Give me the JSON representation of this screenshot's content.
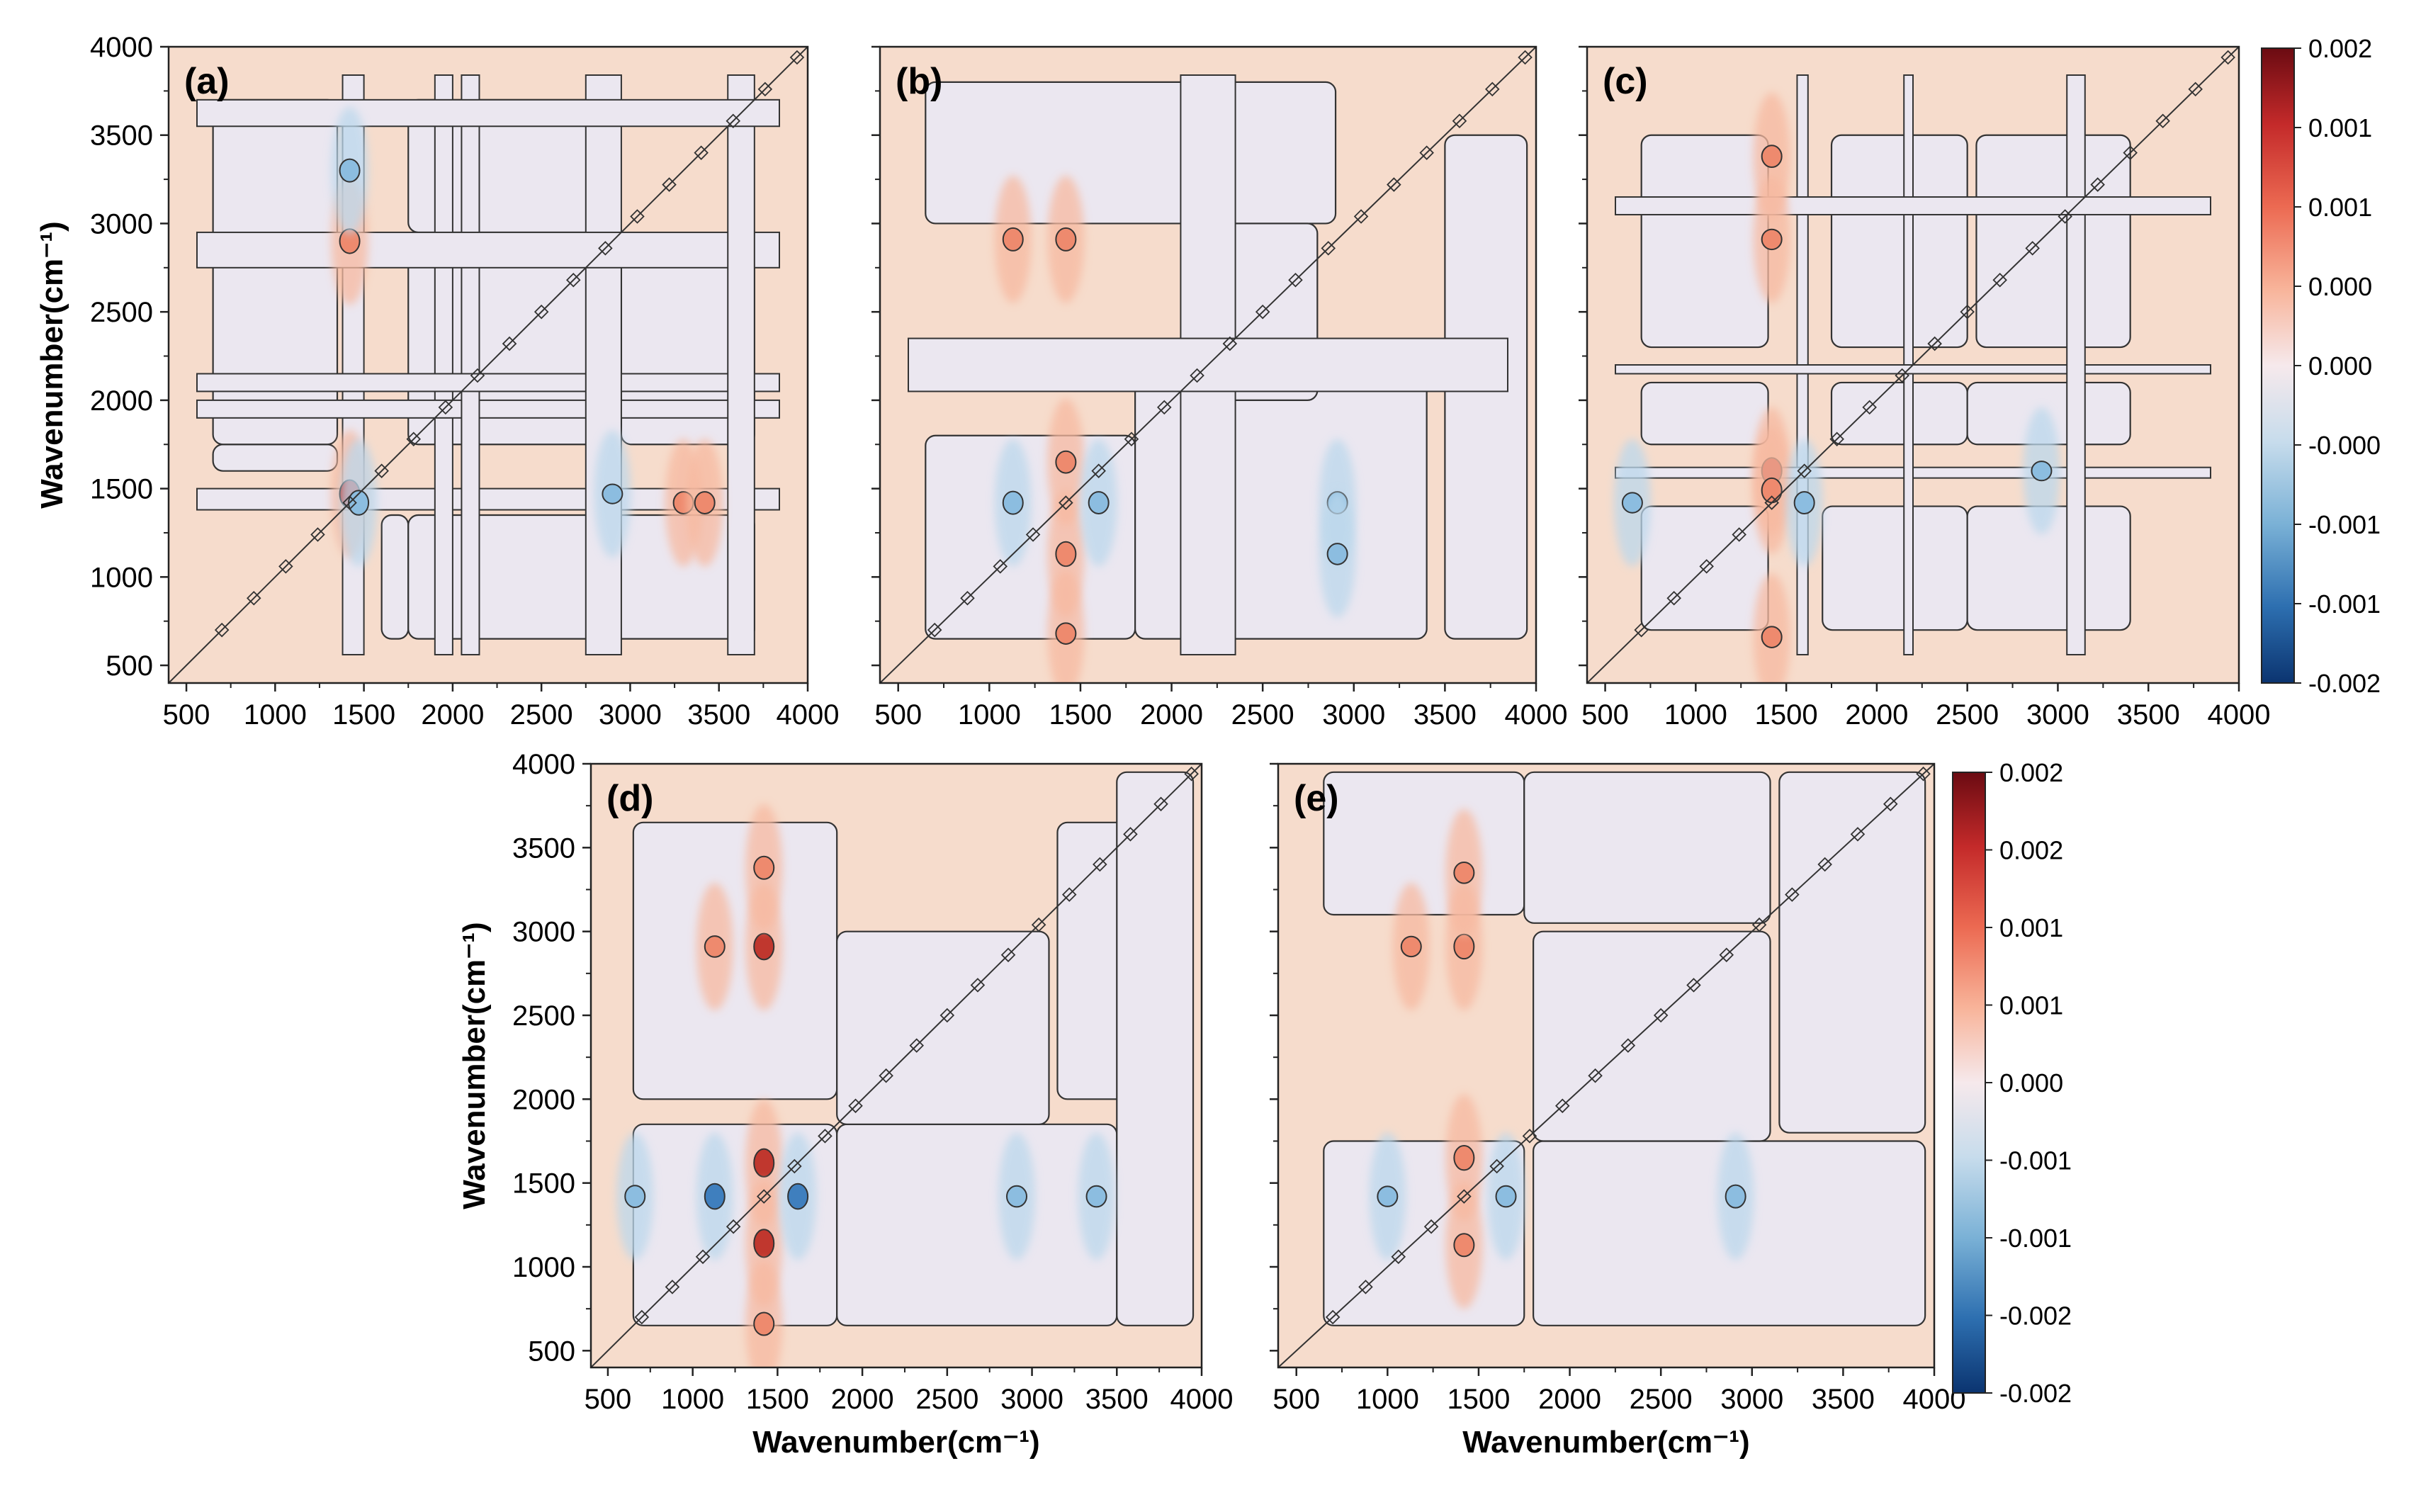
{
  "chart_data": {
    "type": "heatmap",
    "description_kind": "2D-COS synchronous contour maps",
    "colormap": {
      "low": "#0b3b80",
      "mid_low": "#d9e8f3",
      "mid": "#ebe7f0",
      "mid_high": "#f6dccc",
      "high": "#7a0a12"
    },
    "regions": {
      "positive_background": "#f6dccc",
      "negative_background": "#ebe7f0",
      "contour_line": "#333333"
    },
    "panels": [
      {
        "label": "(a)",
        "xlabel": "",
        "ylabel": "Wavenumber(cm⁻¹)",
        "xlim": [
          400,
          4000
        ],
        "ylim": [
          400,
          4000
        ],
        "xticks": [
          "500",
          "1000",
          "1500",
          "2000",
          "2500",
          "3000",
          "3500",
          "4000"
        ],
        "yticks": [
          "500",
          "1000",
          "1500",
          "2000",
          "2500",
          "3000",
          "3500",
          "4000"
        ],
        "negative_bands": [
          [
            1380,
            1500
          ],
          [
            1900,
            2000
          ],
          [
            2050,
            2150
          ],
          [
            2750,
            2950
          ],
          [
            3550,
            3700
          ]
        ],
        "negative_blocks": [
          [
            [
              650,
              1350
            ],
            [
              1600,
              1750
            ]
          ],
          [
            [
              1600,
              1750
            ],
            [
              650,
              1350
            ]
          ],
          [
            [
              1750,
              2900
            ],
            [
              1750,
              2900
            ]
          ],
          [
            [
              650,
              1350
            ],
            [
              1750,
              3700
            ]
          ],
          [
            [
              1750,
              3700
            ],
            [
              650,
              1350
            ]
          ],
          [
            [
              2950,
              3700
            ],
            [
              1750,
              2900
            ]
          ],
          [
            [
              1750,
              2900
            ],
            [
              2950,
              3700
            ]
          ]
        ],
        "peaks": [
          {
            "x": 1420,
            "y": 1470,
            "sign": "+",
            "intensity": 0.0016
          },
          {
            "x": 1470,
            "y": 1420,
            "sign": "-",
            "intensity": 0.0012
          },
          {
            "x": 1420,
            "y": 2900,
            "sign": "+",
            "intensity": 0.0012
          },
          {
            "x": 1420,
            "y": 3300,
            "sign": "-",
            "intensity": 0.001
          },
          {
            "x": 3300,
            "y": 1420,
            "sign": "+",
            "intensity": 0.0009
          },
          {
            "x": 3420,
            "y": 1420,
            "sign": "+",
            "intensity": 0.0009
          },
          {
            "x": 2900,
            "y": 1470,
            "sign": "-",
            "intensity": 0.0006
          }
        ]
      },
      {
        "label": "(b)",
        "xlabel": "",
        "ylabel": "",
        "xlim": [
          400,
          4000
        ],
        "ylim": [
          400,
          4000
        ],
        "xticks": [
          "500",
          "1000",
          "1500",
          "2000",
          "2500",
          "3000",
          "3500",
          "4000"
        ],
        "yticks": [],
        "negative_bands": [
          [
            2050,
            2350
          ]
        ],
        "negative_blocks": [
          [
            [
              650,
              1800
            ],
            [
              650,
              1800
            ]
          ],
          [
            [
              1800,
              3400
            ],
            [
              650,
              2200
            ]
          ],
          [
            [
              650,
              2900
            ],
            [
              3000,
              3800
            ]
          ],
          [
            [
              3500,
              3950
            ],
            [
              650,
              3500
            ]
          ],
          [
            [
              2200,
              2800
            ],
            [
              2000,
              3000
            ]
          ]
        ],
        "peaks": [
          {
            "x": 1130,
            "y": 2910,
            "sign": "+",
            "intensity": 0.001
          },
          {
            "x": 1420,
            "y": 2910,
            "sign": "+",
            "intensity": 0.001
          },
          {
            "x": 1420,
            "y": 1130,
            "sign": "+",
            "intensity": 0.0012
          },
          {
            "x": 1420,
            "y": 1650,
            "sign": "+",
            "intensity": 0.0009
          },
          {
            "x": 1420,
            "y": 680,
            "sign": "+",
            "intensity": 0.0008
          },
          {
            "x": 1130,
            "y": 1420,
            "sign": "-",
            "intensity": 0.001
          },
          {
            "x": 1600,
            "y": 1420,
            "sign": "-",
            "intensity": 0.0009
          },
          {
            "x": 2910,
            "y": 1420,
            "sign": "-",
            "intensity": 0.0009
          },
          {
            "x": 2910,
            "y": 1130,
            "sign": "-",
            "intensity": 0.0008
          }
        ]
      },
      {
        "label": "(c)",
        "xlabel": "",
        "ylabel": "",
        "xlim": [
          400,
          4000
        ],
        "ylim": [
          400,
          4000
        ],
        "xticks": [
          "500",
          "1000",
          "1500",
          "2000",
          "2500",
          "3000",
          "3500",
          "4000"
        ],
        "yticks": [],
        "negative_bands": [
          [
            1560,
            1620
          ],
          [
            2150,
            2200
          ],
          [
            3050,
            3150
          ]
        ],
        "negative_blocks": [
          [
            [
              700,
              1400
            ],
            [
              700,
              1400
            ]
          ],
          [
            [
              1700,
              2500
            ],
            [
              700,
              1400
            ]
          ],
          [
            [
              2500,
              3400
            ],
            [
              700,
              1400
            ]
          ],
          [
            [
              700,
              1400
            ],
            [
              1750,
              2100
            ]
          ],
          [
            [
              1750,
              2500
            ],
            [
              1750,
              2100
            ]
          ],
          [
            [
              2500,
              3400
            ],
            [
              1750,
              2100
            ]
          ],
          [
            [
              700,
              1400
            ],
            [
              2300,
              3500
            ]
          ],
          [
            [
              1750,
              2500
            ],
            [
              2300,
              3500
            ]
          ],
          [
            [
              2550,
              3400
            ],
            [
              2300,
              3500
            ]
          ]
        ],
        "peaks": [
          {
            "x": 1420,
            "y": 1600,
            "sign": "+",
            "intensity": 0.0014
          },
          {
            "x": 1420,
            "y": 1490,
            "sign": "+",
            "intensity": 0.0012
          },
          {
            "x": 1420,
            "y": 3380,
            "sign": "+",
            "intensity": 0.0009
          },
          {
            "x": 1420,
            "y": 2910,
            "sign": "+",
            "intensity": 0.0007
          },
          {
            "x": 1420,
            "y": 660,
            "sign": "+",
            "intensity": 0.0008
          },
          {
            "x": 1600,
            "y": 1420,
            "sign": "-",
            "intensity": 0.0009
          },
          {
            "x": 650,
            "y": 1420,
            "sign": "-",
            "intensity": 0.0007
          },
          {
            "x": 2910,
            "y": 1600,
            "sign": "-",
            "intensity": 0.0006
          }
        ]
      },
      {
        "label": "(d)",
        "xlabel": "Wavenumber(cm⁻¹)",
        "ylabel": "Wavenumber(cm⁻¹)",
        "xlim": [
          400,
          4000
        ],
        "ylim": [
          400,
          4000
        ],
        "xticks": [
          "500",
          "1000",
          "1500",
          "2000",
          "2500",
          "3000",
          "3500",
          "4000"
        ],
        "yticks": [
          "500",
          "1000",
          "1500",
          "2000",
          "2500",
          "3000",
          "3500",
          "4000"
        ],
        "negative_bands": [],
        "negative_blocks": [
          [
            [
              650,
              1850
            ],
            [
              650,
              1850
            ]
          ],
          [
            [
              1850,
              3500
            ],
            [
              650,
              1850
            ]
          ],
          [
            [
              650,
              1850
            ],
            [
              2000,
              3650
            ]
          ],
          [
            [
              1850,
              3100
            ],
            [
              1850,
              3000
            ]
          ],
          [
            [
              3150,
              3650
            ],
            [
              2000,
              3650
            ]
          ],
          [
            [
              3500,
              3950
            ],
            [
              650,
              3950
            ]
          ]
        ],
        "peaks": [
          {
            "x": 1420,
            "y": 1620,
            "sign": "+",
            "intensity": 0.0016
          },
          {
            "x": 1420,
            "y": 1140,
            "sign": "+",
            "intensity": 0.0016
          },
          {
            "x": 1420,
            "y": 2910,
            "sign": "+",
            "intensity": 0.0014
          },
          {
            "x": 1420,
            "y": 3380,
            "sign": "+",
            "intensity": 0.001
          },
          {
            "x": 1420,
            "y": 660,
            "sign": "+",
            "intensity": 0.001
          },
          {
            "x": 1130,
            "y": 2910,
            "sign": "+",
            "intensity": 0.0008
          },
          {
            "x": 1130,
            "y": 1420,
            "sign": "-",
            "intensity": 0.0013
          },
          {
            "x": 1620,
            "y": 1420,
            "sign": "-",
            "intensity": 0.0013
          },
          {
            "x": 660,
            "y": 1420,
            "sign": "-",
            "intensity": 0.0009
          },
          {
            "x": 2910,
            "y": 1420,
            "sign": "-",
            "intensity": 0.0008
          },
          {
            "x": 3380,
            "y": 1420,
            "sign": "-",
            "intensity": 0.0008
          }
        ]
      },
      {
        "label": "(e)",
        "xlabel": "Wavenumber(cm⁻¹)",
        "ylabel": "",
        "xlim": [
          400,
          4000
        ],
        "ylim": [
          400,
          4000
        ],
        "xticks": [
          "500",
          "1000",
          "1500",
          "2000",
          "2500",
          "3000",
          "3500",
          "4000"
        ],
        "yticks": [],
        "negative_bands": [],
        "negative_blocks": [
          [
            [
              650,
              1750
            ],
            [
              650,
              1750
            ]
          ],
          [
            [
              1800,
              3950
            ],
            [
              650,
              1750
            ]
          ],
          [
            [
              1800,
              3100
            ],
            [
              1750,
              3000
            ]
          ],
          [
            [
              650,
              1750
            ],
            [
              3100,
              3950
            ]
          ],
          [
            [
              3150,
              3950
            ],
            [
              1800,
              3950
            ]
          ],
          [
            [
              1750,
              3100
            ],
            [
              3050,
              3950
            ]
          ]
        ],
        "peaks": [
          {
            "x": 1420,
            "y": 1650,
            "sign": "+",
            "intensity": 0.0012
          },
          {
            "x": 1420,
            "y": 2910,
            "sign": "+",
            "intensity": 0.0012
          },
          {
            "x": 1420,
            "y": 1130,
            "sign": "+",
            "intensity": 0.001
          },
          {
            "x": 1420,
            "y": 3350,
            "sign": "+",
            "intensity": 0.0008
          },
          {
            "x": 1130,
            "y": 2910,
            "sign": "+",
            "intensity": 0.0007
          },
          {
            "x": 2910,
            "y": 1420,
            "sign": "-",
            "intensity": 0.001
          },
          {
            "x": 1000,
            "y": 1420,
            "sign": "-",
            "intensity": 0.0007
          },
          {
            "x": 1650,
            "y": 1420,
            "sign": "-",
            "intensity": 0.0008
          }
        ]
      }
    ],
    "colorbars": [
      {
        "for_panels": [
          "(a)",
          "(b)",
          "(c)"
        ],
        "range": [
          -0.002,
          0.002
        ],
        "labels": [
          "0.002",
          "0.001",
          "0.001",
          "0.000",
          "0.000",
          "-0.000",
          "-0.001",
          "-0.001",
          "-0.002"
        ]
      },
      {
        "for_panels": [
          "(d)",
          "(e)"
        ],
        "range": [
          -0.002,
          0.002
        ],
        "labels": [
          "0.002",
          "0.002",
          "0.001",
          "0.001",
          "0.000",
          "-0.001",
          "-0.001",
          "-0.002",
          "-0.002"
        ]
      }
    ]
  }
}
